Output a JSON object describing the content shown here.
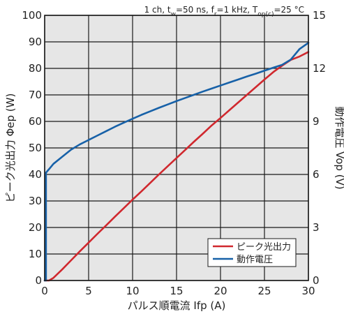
{
  "chart_data": {
    "type": "line",
    "condition": {
      "text": "1 ch, t",
      "tw_sub": "w",
      "tw_rest": "=50 ns, f",
      "fr_sub": "r",
      "fr_rest": "=1 kHz, T",
      "top_sub": "op(c)",
      "top_rest": "=25 °C"
    },
    "xlabel": "パルス順電流 Ifp (A)",
    "ylabel_left": "ピーク光出力 Φep (W)",
    "ylabel_right": "動作電圧 Vop (V)",
    "xlim": [
      0,
      30
    ],
    "ylim_left": [
      0,
      100
    ],
    "ylim_right": [
      0,
      15
    ],
    "x_ticks": [
      "0",
      "5",
      "10",
      "15",
      "20",
      "25",
      "30"
    ],
    "y_ticks_left": [
      "0",
      "10",
      "20",
      "30",
      "40",
      "50",
      "60",
      "70",
      "80",
      "90",
      "100"
    ],
    "y_ticks_right": [
      "0",
      "3",
      "6",
      "9",
      "12",
      "15"
    ],
    "grid": true,
    "legend_position": "bottom-right",
    "colors": {
      "plot_bg": "#e6e6e6",
      "grid": "#1a1a1a",
      "power": "#d0282e",
      "voltage": "#1761a8"
    },
    "series": [
      {
        "name": "ピーク光出力",
        "axis": "left",
        "color": "#d0282e",
        "x": [
          0,
          0.5,
          1,
          2,
          3,
          4,
          5,
          6,
          7,
          8,
          9,
          10,
          11,
          12,
          13,
          14,
          15,
          16,
          17,
          18,
          19,
          20,
          21,
          22,
          23,
          24,
          25,
          26,
          27,
          28,
          29,
          30
        ],
        "y": [
          0,
          0,
          1,
          4.2,
          7.6,
          11,
          14.3,
          17.6,
          20.8,
          24.1,
          27.3,
          30.5,
          33.6,
          36.8,
          40,
          43.1,
          46.2,
          49.3,
          52.4,
          55.4,
          58.5,
          61.3,
          64.2,
          67.1,
          70,
          72.9,
          75.8,
          78.6,
          81,
          83.2,
          84.5,
          86.2
        ]
      },
      {
        "name": "動作電圧",
        "axis": "right",
        "color": "#1761a8",
        "x": [
          0,
          0.15,
          0.15,
          0.5,
          1,
          2,
          3,
          4,
          5,
          6,
          7,
          8,
          9,
          10,
          11,
          12,
          13,
          14,
          15,
          16,
          17,
          18,
          19,
          20,
          21,
          22,
          23,
          24,
          25,
          26,
          27,
          28,
          29,
          30
        ],
        "y": [
          0,
          0,
          6.1,
          6.3,
          6.6,
          7.0,
          7.4,
          7.7,
          7.95,
          8.2,
          8.45,
          8.7,
          8.93,
          9.15,
          9.37,
          9.57,
          9.77,
          9.96,
          10.15,
          10.33,
          10.51,
          10.69,
          10.86,
          11.03,
          11.2,
          11.37,
          11.54,
          11.7,
          11.87,
          12.04,
          12.2,
          12.5,
          13.1,
          13.45
        ]
      }
    ]
  }
}
